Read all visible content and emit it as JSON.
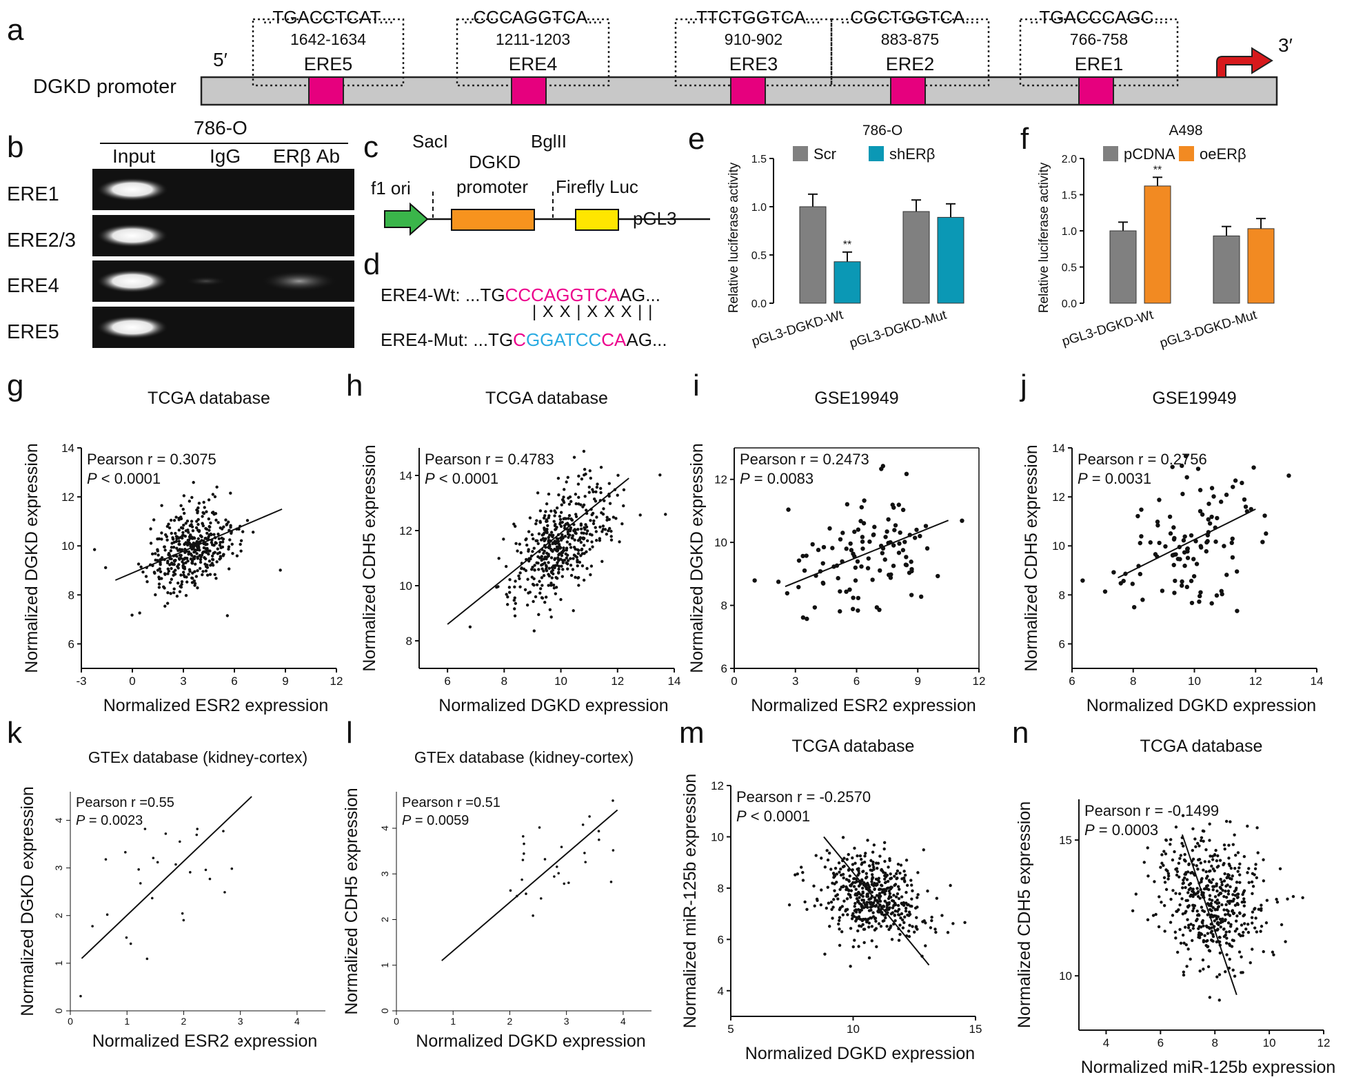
{
  "colors": {
    "magenta": "#e6007e",
    "grey_bar": "#808080",
    "teal": "#0b98b5",
    "orange": "#f28a22",
    "green": "#3ab54a",
    "yellow": "#ffe600",
    "promoter_orange": "#f7931e",
    "arrow_red": "#d7191c",
    "mut_blue": "#29abe2",
    "wt_pink": "#ec008c"
  },
  "panel_a": {
    "letter": "a",
    "row_label": "DGKD promoter",
    "five_prime": "5′",
    "three_prime": "3′",
    "elements": [
      {
        "name": "ERE5",
        "seq": "..TGACCTCAT...",
        "pos": "1642-1634"
      },
      {
        "name": "ERE4",
        "seq": "..CCCAGGTCA...",
        "pos": "1211-1203"
      },
      {
        "name": "ERE3",
        "seq": "..TTCTGGTCA...",
        "pos": "910-902"
      },
      {
        "name": "ERE2",
        "seq": "..CGCTGGTCA...",
        "pos": "883-875"
      },
      {
        "name": "ERE1",
        "seq": "..TGACCCAGC...",
        "pos": "766-758"
      }
    ]
  },
  "panel_b": {
    "letter": "b",
    "cell_line": "786-O",
    "lanes": [
      "Input",
      "IgG",
      "ERβ Ab"
    ],
    "rows": [
      "ERE1",
      "ERE2/3",
      "ERE4",
      "ERE5"
    ]
  },
  "panel_c": {
    "letter": "c",
    "sacl": "SacI",
    "bglii": "BglII",
    "promoter": "DGKD\npromoter",
    "promoter_line1": "DGKD",
    "promoter_line2": "promoter",
    "f1": "f1 ori",
    "luc": "Firefly Luc",
    "vector": "pGL3"
  },
  "panel_d": {
    "letter": "d",
    "wt_label": "ERE4-Wt:",
    "mut_label": "ERE4-Mut:",
    "wt_prefix": "...TG",
    "wt_core": "CCCAGGTCA",
    "wt_suffix": "AG...",
    "mut_prefix": "...TG",
    "mut_c1": "C",
    "mut_core": "GGATCC",
    "mut_c2": "CA",
    "mut_suffix": "AG...",
    "match_line": "|  X X  |  X X X  |  |"
  },
  "panel_e": {
    "letter": "e",
    "title": "786-O",
    "ylabel": "Relative luciferase activity",
    "legend": [
      "Scr",
      "shERβ"
    ],
    "ticks": [
      "0.0",
      "0.5",
      "1.0",
      "1.5"
    ],
    "groups": [
      "pGL3-DGKD-Wt",
      "pGL3-DGKD-Mut"
    ],
    "sig": "**"
  },
  "panel_f": {
    "letter": "f",
    "title": "A498",
    "ylabel": "Relative luciferase activity",
    "legend": [
      "pCDNA",
      "oeERβ"
    ],
    "ticks": [
      "0.0",
      "0.5",
      "1.0",
      "1.5",
      "2.0"
    ],
    "groups": [
      "pGL3-DGKD-Wt",
      "pGL3-DGKD-Mut"
    ],
    "sig": "**"
  },
  "chart_data": [
    {
      "panel": "e",
      "type": "bar",
      "categories": [
        "pGL3-DGKD-Wt",
        "pGL3-DGKD-Mut"
      ],
      "series": [
        {
          "name": "Scr",
          "values": [
            1.0,
            0.95
          ],
          "errors": [
            0.13,
            0.12
          ]
        },
        {
          "name": "shERβ",
          "values": [
            0.43,
            0.89
          ],
          "errors": [
            0.1,
            0.14
          ]
        }
      ],
      "ylim": [
        0,
        1.5
      ],
      "ylabel": "Relative luciferase activity",
      "title": "786-O"
    },
    {
      "panel": "f",
      "type": "bar",
      "categories": [
        "pGL3-DGKD-Wt",
        "pGL3-DGKD-Mut"
      ],
      "series": [
        {
          "name": "pCDNA",
          "values": [
            1.0,
            0.93
          ],
          "errors": [
            0.12,
            0.13
          ]
        },
        {
          "name": "oeERβ",
          "values": [
            1.62,
            1.03
          ],
          "errors": [
            0.12,
            0.14
          ]
        }
      ],
      "ylim": [
        0,
        2.0
      ],
      "ylabel": "Relative luciferase activity",
      "title": "A498"
    },
    {
      "panel": "g",
      "type": "scatter",
      "title": "TCGA database",
      "xlabel": "Normalized ESR2 expression",
      "ylabel": "Normalized DGKD expression",
      "xlim": [
        -3,
        12
      ],
      "ylim": [
        5,
        14
      ],
      "xticks": [
        -3,
        0,
        3,
        6,
        9,
        12
      ],
      "yticks": [
        6,
        8,
        10,
        12,
        14
      ],
      "stat1": "Pearson r = 0.3075",
      "stat2_p": "P",
      "stat2_rest": " < 0.0001",
      "fit": [
        [
          -1,
          8.6
        ],
        [
          8.8,
          11.5
        ]
      ],
      "center": [
        3.5,
        9.9
      ],
      "spread": [
        1.4,
        0.9
      ],
      "n": 420,
      "corr": 0.35,
      "seed": 11
    },
    {
      "panel": "h",
      "type": "scatter",
      "title": "TCGA database",
      "xlabel": "Normalized DGKD expression",
      "ylabel": "Normalized CDH5 expression",
      "xlim": [
        5,
        14
      ],
      "ylim": [
        7,
        15
      ],
      "xticks": [
        6,
        8,
        10,
        12,
        14
      ],
      "yticks": [
        8,
        10,
        12,
        14
      ],
      "stat1": "Pearson r = 0.4783",
      "stat2_p": "P",
      "stat2_rest": " < 0.0001",
      "fit": [
        [
          6,
          8.6
        ],
        [
          12.4,
          13.9
        ]
      ],
      "center": [
        10,
        11.6
      ],
      "spread": [
        0.9,
        1.1
      ],
      "n": 480,
      "corr": 0.5,
      "seed": 23
    },
    {
      "panel": "i",
      "type": "scatter",
      "title": "GSE19949",
      "xlabel": "Normalized ESR2 expression",
      "ylabel": "Normalized DGKD expression",
      "xlim": [
        0,
        12
      ],
      "ylim": [
        6,
        13
      ],
      "xticks": [
        0,
        3,
        6,
        9,
        12
      ],
      "yticks": [
        6,
        8,
        10,
        12
      ],
      "stat1": "Pearson r = 0.2473",
      "stat2_p": "P",
      "stat2_rest": " = 0.0083",
      "fit": [
        [
          2.5,
          8.6
        ],
        [
          10.5,
          10.7
        ]
      ],
      "center": [
        6.3,
        9.6
      ],
      "spread": [
        1.8,
        1.0
      ],
      "n": 110,
      "corr": 0.3,
      "seed": 37
    },
    {
      "panel": "j",
      "type": "scatter",
      "title": "GSE19949",
      "xlabel": "Normalized DGKD expression",
      "ylabel": "Normalized CDH5 expression",
      "xlim": [
        6,
        14
      ],
      "ylim": [
        5,
        14
      ],
      "xticks": [
        6,
        8,
        10,
        12,
        14
      ],
      "yticks": [
        6,
        8,
        10,
        12,
        14
      ],
      "stat1": "Pearson r = 0.2756",
      "stat2_p": "P",
      "stat2_rest": " = 0.0031",
      "fit": [
        [
          7.5,
          8.7
        ],
        [
          12,
          11.5
        ]
      ],
      "center": [
        9.8,
        9.9
      ],
      "spread": [
        1.1,
        1.5
      ],
      "n": 110,
      "corr": 0.3,
      "seed": 41
    },
    {
      "panel": "k",
      "type": "scatter",
      "title": "GTEx database (kidney-cortex)",
      "xlabel": "Normalized ESR2 expression",
      "ylabel": "Normalized DGKD expression",
      "xlim": [
        0,
        4.5
      ],
      "ylim": [
        0,
        4.6
      ],
      "xticks": [
        0,
        1,
        2,
        3,
        4
      ],
      "yticks": [
        0,
        1,
        2,
        3,
        4
      ],
      "stat1": "Pearson r =0.55",
      "stat2_p": "P",
      "stat2_rest": " = 0.0023",
      "fit": [
        [
          0.2,
          1.1
        ],
        [
          3.2,
          4.5
        ]
      ],
      "center": [
        1.7,
        2.9
      ],
      "spread": [
        0.8,
        0.8
      ],
      "n": 30,
      "corr": 0.5,
      "seed": 53
    },
    {
      "panel": "l",
      "type": "scatter",
      "title": "GTEx database (kidney-cortex)",
      "xlabel": "Normalized DGKD expression",
      "ylabel": "Normalized CDH5 expression",
      "xlim": [
        0,
        4.5
      ],
      "ylim": [
        0,
        4.8
      ],
      "xticks": [
        0,
        1,
        2,
        3,
        4
      ],
      "yticks": [
        0,
        1,
        2,
        3,
        4
      ],
      "stat1": "Pearson r =0.51",
      "stat2_p": "P",
      "stat2_rest": " = 0.0059",
      "fit": [
        [
          0.8,
          1.1
        ],
        [
          3.9,
          4.4
        ]
      ],
      "center": [
        2.8,
        3.4
      ],
      "spread": [
        0.8,
        0.7
      ],
      "n": 30,
      "corr": 0.5,
      "seed": 61
    },
    {
      "panel": "m",
      "type": "scatter",
      "title": "TCGA database",
      "xlabel": "Normalized DGKD expression",
      "ylabel": "Normalized miR-125b expression",
      "xlim": [
        5,
        15
      ],
      "ylim": [
        3,
        12
      ],
      "xticks": [
        5,
        10,
        15
      ],
      "yticks": [
        4,
        6,
        8,
        10,
        12
      ],
      "stat1": "Pearson r = -0.2570",
      "stat2_p": "P",
      "stat2_rest": " < 0.0001",
      "fit": [
        [
          8.8,
          10
        ],
        [
          13.1,
          5
        ]
      ],
      "center": [
        10.8,
        7.7
      ],
      "spread": [
        1.1,
        0.9
      ],
      "n": 500,
      "corr": -0.3,
      "seed": 71
    },
    {
      "panel": "n",
      "type": "scatter",
      "title": "TCGA database",
      "xlabel": "Normalized miR-125b expression",
      "ylabel": "Normalized CDH5 expression",
      "xlim": [
        3,
        12
      ],
      "ylim": [
        8,
        16.5
      ],
      "xticks": [
        4,
        6,
        8,
        10,
        12
      ],
      "yticks": [
        10,
        15
      ],
      "stat1": "Pearson r = -0.1499",
      "stat2_p": "P",
      "stat2_rest": " = 0.0003",
      "fit": [
        [
          6.8,
          15.2
        ],
        [
          8.8,
          9.3
        ]
      ],
      "center": [
        7.9,
        12.8
      ],
      "spread": [
        1.0,
        1.2
      ],
      "n": 500,
      "corr": -0.2,
      "seed": 83
    }
  ]
}
